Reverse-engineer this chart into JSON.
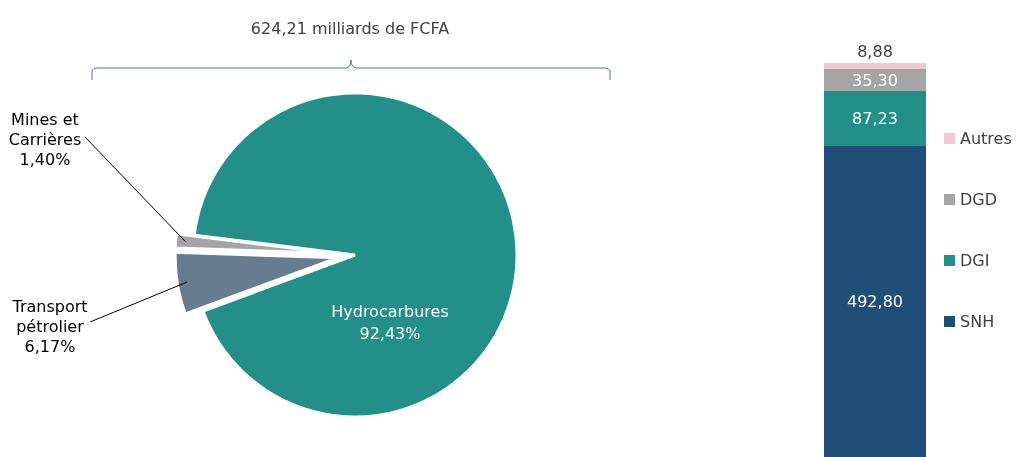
{
  "chart_data": [
    {
      "type": "pie",
      "title": "624,21 milliards de FCFA",
      "categories": [
        "Hydrocarbures",
        "Transport pétrolier",
        "Mines et Carrières"
      ],
      "values": [
        92.43,
        6.17,
        1.4
      ],
      "colors": [
        "#229089",
        "#667d91",
        "#a5a5a5"
      ],
      "value_labels": [
        "92,43%",
        "6,17%",
        "1,40%"
      ]
    },
    {
      "type": "bar",
      "stacked": true,
      "categories": [
        null
      ],
      "series": [
        {
          "name": "SNH",
          "color": "#1f4e79",
          "values": [
            492.8
          ],
          "value_labels": [
            "492,80"
          ]
        },
        {
          "name": "DGI",
          "color": "#229089",
          "values": [
            87.23
          ],
          "value_labels": [
            "87,23"
          ]
        },
        {
          "name": "DGD",
          "color": "#a5a5a5",
          "values": [
            35.3
          ],
          "value_labels": [
            "35,30"
          ]
        },
        {
          "name": "Autres",
          "color": "#f4c7d0",
          "values": [
            8.88
          ],
          "value_labels": [
            "8,88"
          ]
        }
      ],
      "legend": "right"
    }
  ]
}
